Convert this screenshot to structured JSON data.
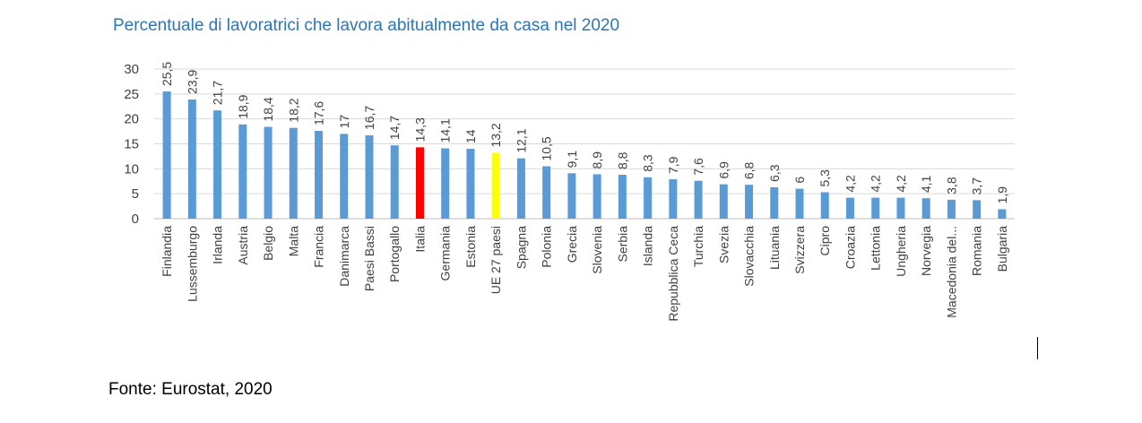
{
  "title": "Percentuale di lavoratrici che lavora abitualmente da casa nel 2020",
  "source": "Fonte: Eurostat, 2020",
  "colors": {
    "default": "#5b9bd5",
    "italy": "#ff0000",
    "eu27": "#ffff00",
    "grid": "#d9d9d9",
    "title": "#2e75b6"
  },
  "chart_data": {
    "type": "bar",
    "title": "Percentuale di lavoratrici che lavora abitualmente da casa nel 2020",
    "xlabel": "",
    "ylabel": "",
    "ylim": [
      0,
      30
    ],
    "yticks": [
      0,
      5,
      10,
      15,
      20,
      25,
      30
    ],
    "grid": true,
    "legend": "none",
    "categories": [
      "Finlandia",
      "Lussemburgo",
      "Irlanda",
      "Austria",
      "Belgio",
      "Malta",
      "Francia",
      "Danimarca",
      "Paesi Bassi",
      "Portogallo",
      "Italia",
      "Germania",
      "Estonia",
      "UE 27 paesi",
      "Spagna",
      "Polonia",
      "Grecia",
      "Slovenia",
      "Serbia",
      "Islanda",
      "Repubblica Ceca",
      "Turchia",
      "Svezia",
      "Slovacchia",
      "Lituania",
      "Svizzera",
      "Cipro",
      "Croazia",
      "Lettonia",
      "Ungheria",
      "Norvegia",
      "Macedonia del...",
      "Romania",
      "Bulgaria"
    ],
    "values": [
      25.5,
      23.9,
      21.7,
      18.9,
      18.4,
      18.2,
      17.6,
      17,
      16.7,
      14.7,
      14.3,
      14.1,
      14,
      13.2,
      12.1,
      10.5,
      9.1,
      8.9,
      8.8,
      8.3,
      7.9,
      7.6,
      6.9,
      6.8,
      6.3,
      6,
      5.3,
      4.2,
      4.2,
      4.2,
      4.1,
      3.8,
      3.7,
      1.9
    ],
    "data_labels": [
      "25,5",
      "23,9",
      "21,7",
      "18,9",
      "18,4",
      "18,2",
      "17,6",
      "17",
      "16,7",
      "14,7",
      "14,3",
      "14,1",
      "14",
      "13,2",
      "12,1",
      "10,5",
      "9,1",
      "8,9",
      "8,8",
      "8,3",
      "7,9",
      "7,6",
      "6,9",
      "6,8",
      "6,3",
      "6",
      "5,3",
      "4,2",
      "4,2",
      "4,2",
      "4,1",
      "3,8",
      "3,7",
      "1,9"
    ],
    "highlights": {
      "Italia": "italy",
      "UE 27 paesi": "eu27"
    }
  }
}
